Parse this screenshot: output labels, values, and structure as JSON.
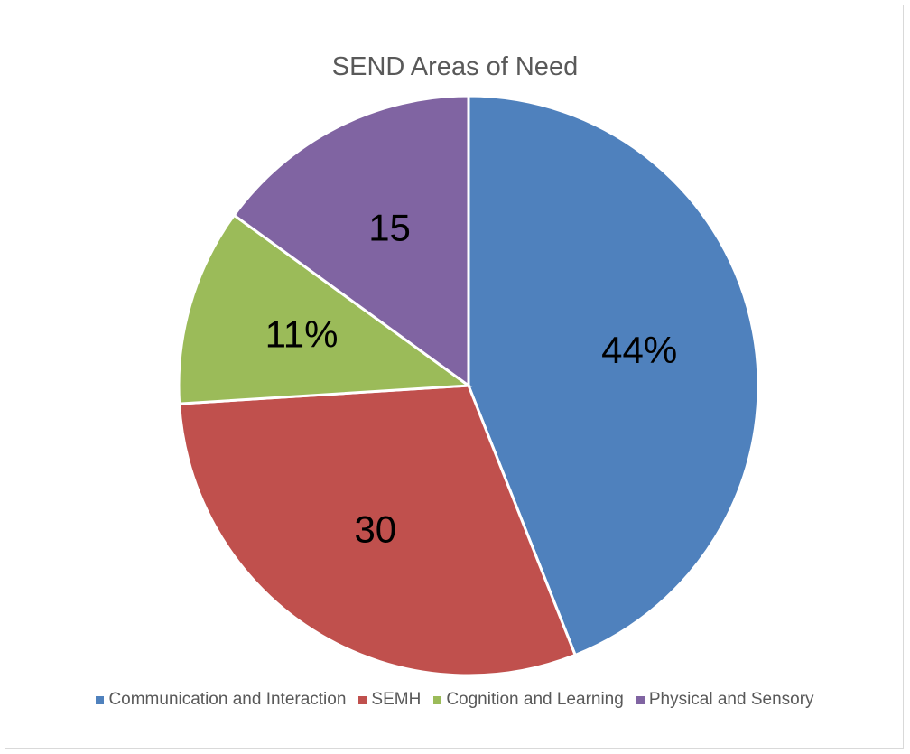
{
  "chart_data": {
    "type": "pie",
    "title": "SEND Areas of Need",
    "categories": [
      "Communication and Interaction",
      "SEMH",
      "Cognition and Learning",
      "Physical and Sensory"
    ],
    "values": [
      44,
      30,
      11,
      15
    ],
    "data_labels": [
      "44%",
      "30",
      "11%",
      "15"
    ],
    "colors": [
      "#4f81bd",
      "#c0504d",
      "#9bbb59",
      "#8064a2"
    ],
    "start_angle_deg": 0,
    "direction": "clockwise",
    "legend_position": "bottom"
  },
  "legend": {
    "items": [
      {
        "label": "Communication and Interaction",
        "color": "#4f81bd"
      },
      {
        "label": "SEMH",
        "color": "#c0504d"
      },
      {
        "label": "Cognition and Learning",
        "color": "#9bbb59"
      },
      {
        "label": "Physical and Sensory",
        "color": "#8064a2"
      }
    ]
  }
}
